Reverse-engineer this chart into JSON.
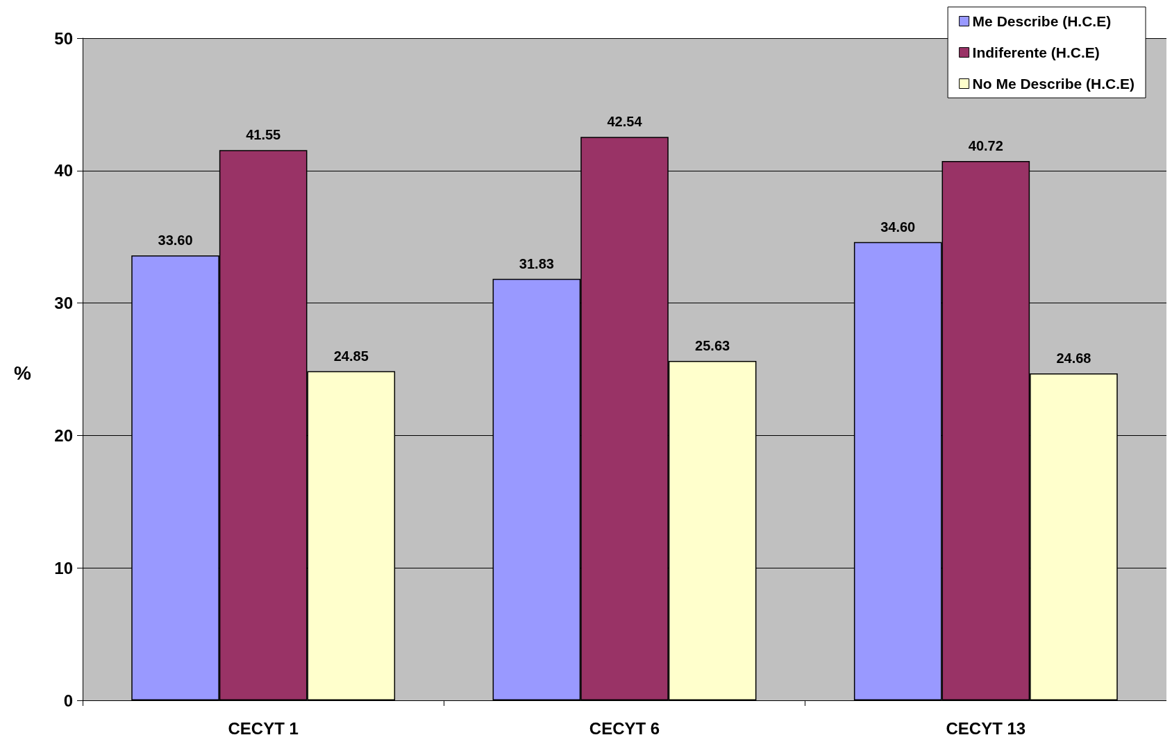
{
  "chart_data": {
    "type": "bar",
    "ylabel": "%",
    "categories": [
      "CECYT 1",
      "CECYT 6",
      "CECYT 13"
    ],
    "series": [
      {
        "name": "Me Describe (H.C.E)",
        "color": "#9999ff",
        "values": [
          33.6,
          31.83,
          34.6
        ],
        "value_labels": [
          "33.60",
          "31.83",
          "34.60"
        ]
      },
      {
        "name": "Indiferente (H.C.E)",
        "color": "#993366",
        "values": [
          41.55,
          42.54,
          40.72
        ],
        "value_labels": [
          "41.55",
          "42.54",
          "40.72"
        ]
      },
      {
        "name": "No Me Describe (H.C.E)",
        "color": "#ffffcc",
        "values": [
          24.85,
          25.63,
          24.68
        ],
        "value_labels": [
          "24.85",
          "25.63",
          "24.68"
        ]
      }
    ],
    "ylim": [
      0,
      50
    ],
    "yticks": [
      0,
      10,
      20,
      30,
      40,
      50
    ],
    "grid": "y",
    "legend": "top right"
  }
}
